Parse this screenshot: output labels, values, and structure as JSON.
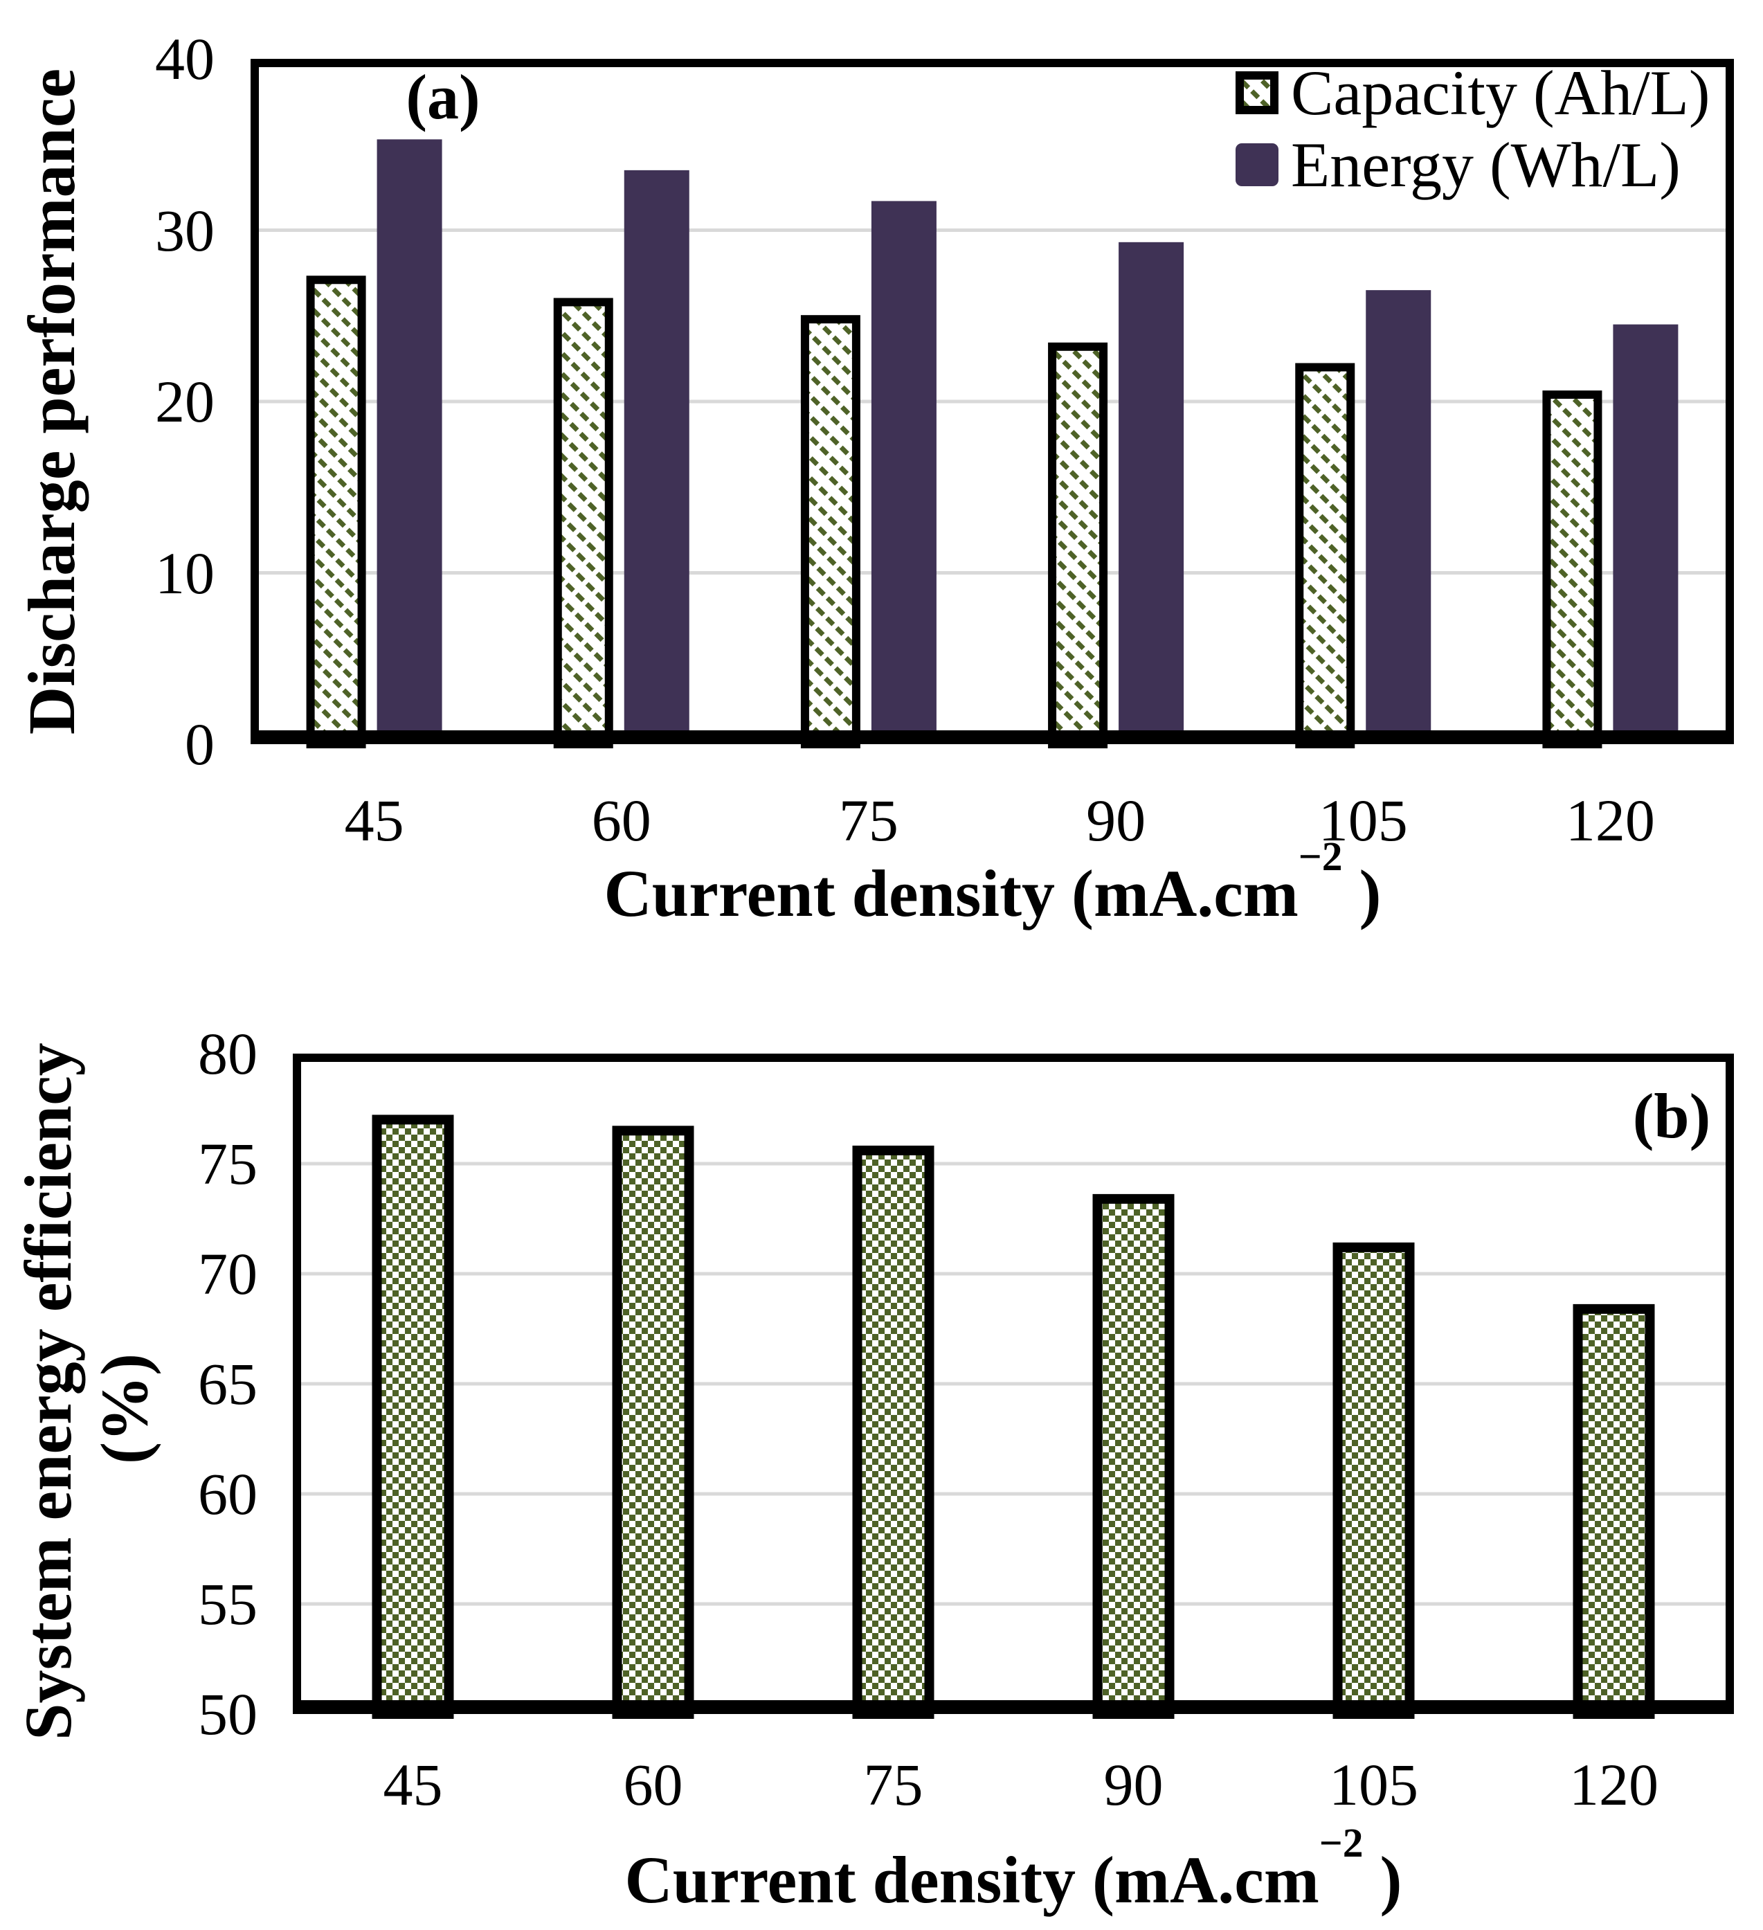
{
  "figure": {
    "background": "#ffffff"
  },
  "colors": {
    "energy_bar": "#3f3255",
    "hatch_green": "#4e6227",
    "checker_green": "#4e6227",
    "gridline": "#d9d9d9",
    "axis": "#000000",
    "text": "#000000"
  },
  "chart_data": [
    {
      "id": "a",
      "type": "bar",
      "panel_label": "(a)",
      "categories": [
        "45",
        "60",
        "75",
        "90",
        "105",
        "120"
      ],
      "series": [
        {
          "name": "Capacity (Ah/L)",
          "values": [
            27.1,
            25.8,
            24.8,
            23.2,
            22.0,
            20.4
          ],
          "style": "diagonal-hatch",
          "hatch_color": "#4e6227",
          "border_color": "#000000"
        },
        {
          "name": "Energy (Wh/L)",
          "values": [
            35.3,
            33.5,
            31.7,
            29.3,
            26.5,
            24.5
          ],
          "style": "solid",
          "fill_color": "#3f3255"
        }
      ],
      "xlabel_prefix": "Current density (mA.cm",
      "xlabel_sup": "−2",
      "xlabel_suffix": " )",
      "ylabel": "Discharge performance",
      "ylim": [
        0,
        40
      ],
      "yticks": [
        0,
        10,
        20,
        30,
        40
      ],
      "grid": true,
      "legend_position": "top-right-inside"
    },
    {
      "id": "b",
      "type": "bar",
      "panel_label": "(b)",
      "categories": [
        "45",
        "60",
        "75",
        "90",
        "105",
        "120"
      ],
      "series": [
        {
          "name": "System energy efficiency (%)",
          "values": [
            77.0,
            76.5,
            75.6,
            73.4,
            71.2,
            68.4
          ],
          "style": "checkerboard",
          "checker_color": "#4e6227",
          "border_color": "#000000"
        }
      ],
      "xlabel_prefix": "Current density (mA.cm",
      "xlabel_sup": "−2",
      "xlabel_suffix": " )",
      "ylabel": "System energy efficiency",
      "ylabel_line2": "(%)",
      "ylim": [
        50,
        80
      ],
      "yticks": [
        50,
        55,
        60,
        65,
        70,
        75,
        80
      ],
      "grid": true
    }
  ]
}
